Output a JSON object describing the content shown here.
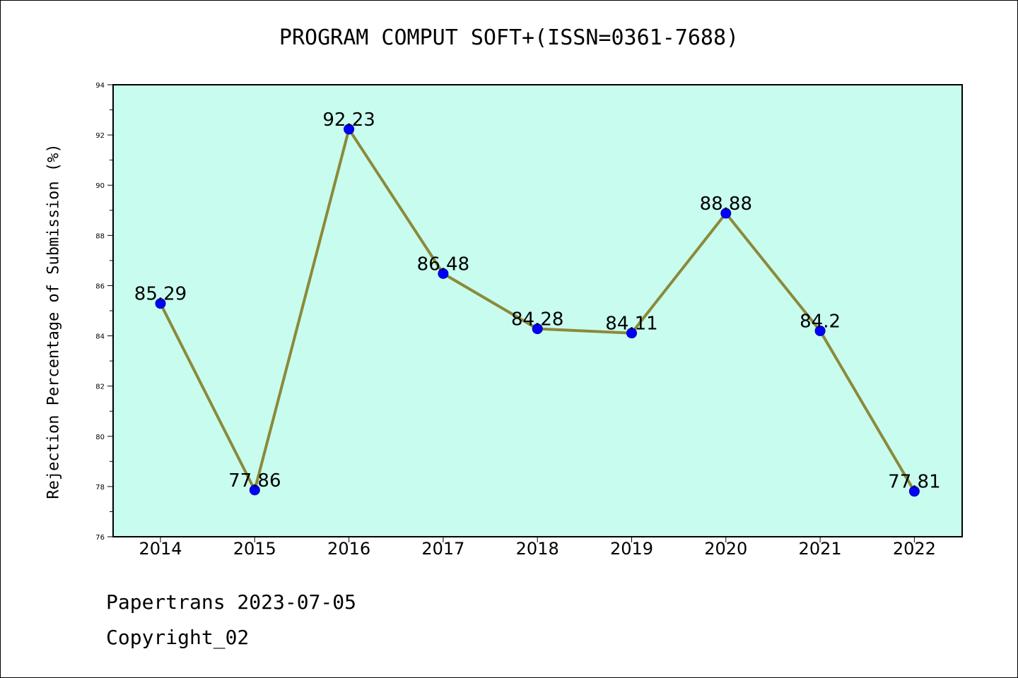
{
  "chart_data": {
    "type": "line",
    "title": "PROGRAM COMPUT SOFT+(ISSN=0361-7688)",
    "xlabel": "",
    "ylabel": "Rejection Percentage of Submission (%)",
    "categories": [
      "2014",
      "2015",
      "2016",
      "2017",
      "2018",
      "2019",
      "2020",
      "2021",
      "2022"
    ],
    "values": [
      85.29,
      77.86,
      92.23,
      86.48,
      84.28,
      84.11,
      88.88,
      84.2,
      77.81
    ],
    "data_labels": [
      "85.29",
      "77.86",
      "92.23",
      "86.48",
      "84.28",
      "84.11",
      "88.88",
      "84.2",
      "77.81"
    ],
    "ylim": [
      76,
      94
    ],
    "yticks": [
      76,
      78,
      80,
      82,
      84,
      86,
      88,
      90,
      92,
      94
    ],
    "grid": false,
    "legend": "none",
    "colors": {
      "plot_background": "#c8fcee",
      "line": "#8b8a3a",
      "marker": "#0000ff"
    }
  },
  "footer": {
    "line1": "Papertrans 2023-07-05",
    "line2": "Copyright_02"
  }
}
